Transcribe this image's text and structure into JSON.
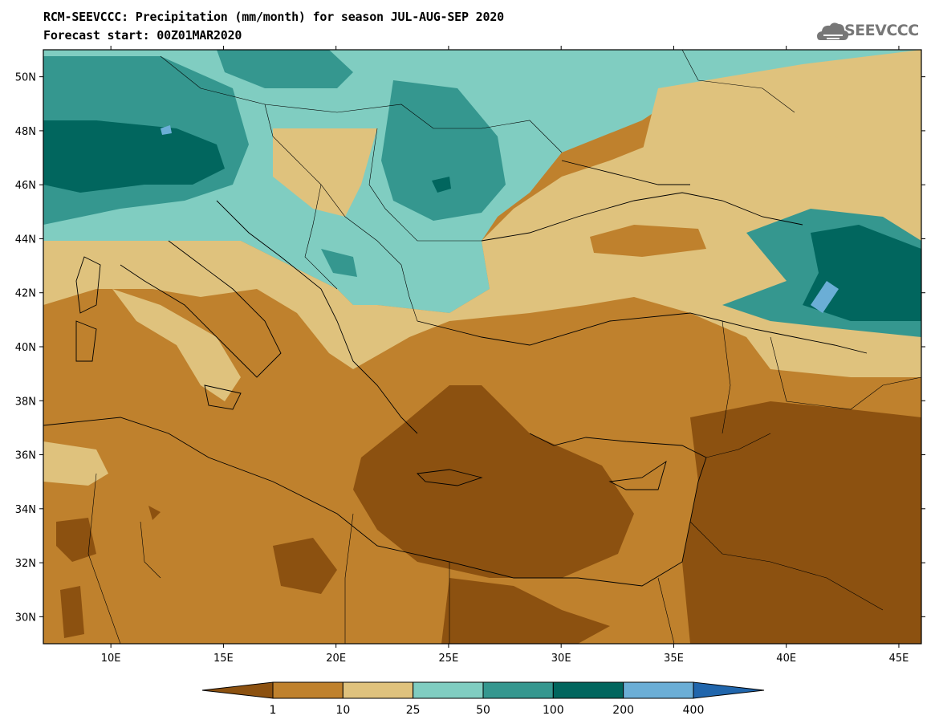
{
  "header": {
    "title_line1": "RCM-SEEVCCC: Precipitation (mm/month) for season JUL-AUG-SEP 2020",
    "title_line2": "Forecast start: 00Z01MAR2020"
  },
  "logo": {
    "text": "SEEVCCC",
    "icon": "cloud-icon",
    "color": "#777777"
  },
  "map": {
    "lat_labels": [
      "50N",
      "48N",
      "46N",
      "44N",
      "42N",
      "40N",
      "38N",
      "36N",
      "34N",
      "32N",
      "30N"
    ],
    "lon_labels": [
      "10E",
      "15E",
      "20E",
      "25E",
      "30E",
      "35E",
      "40E",
      "45E"
    ],
    "lat_range": [
      29,
      51
    ],
    "lon_range": [
      7,
      46
    ]
  },
  "colorbar": {
    "levels": [
      "1",
      "10",
      "25",
      "50",
      "100",
      "200",
      "400"
    ],
    "colors": [
      "#8c5110",
      "#bf812d",
      "#dfc27d",
      "#80cdc1",
      "#35978f",
      "#01665e",
      "#6baed6",
      "#2166ac"
    ]
  }
}
